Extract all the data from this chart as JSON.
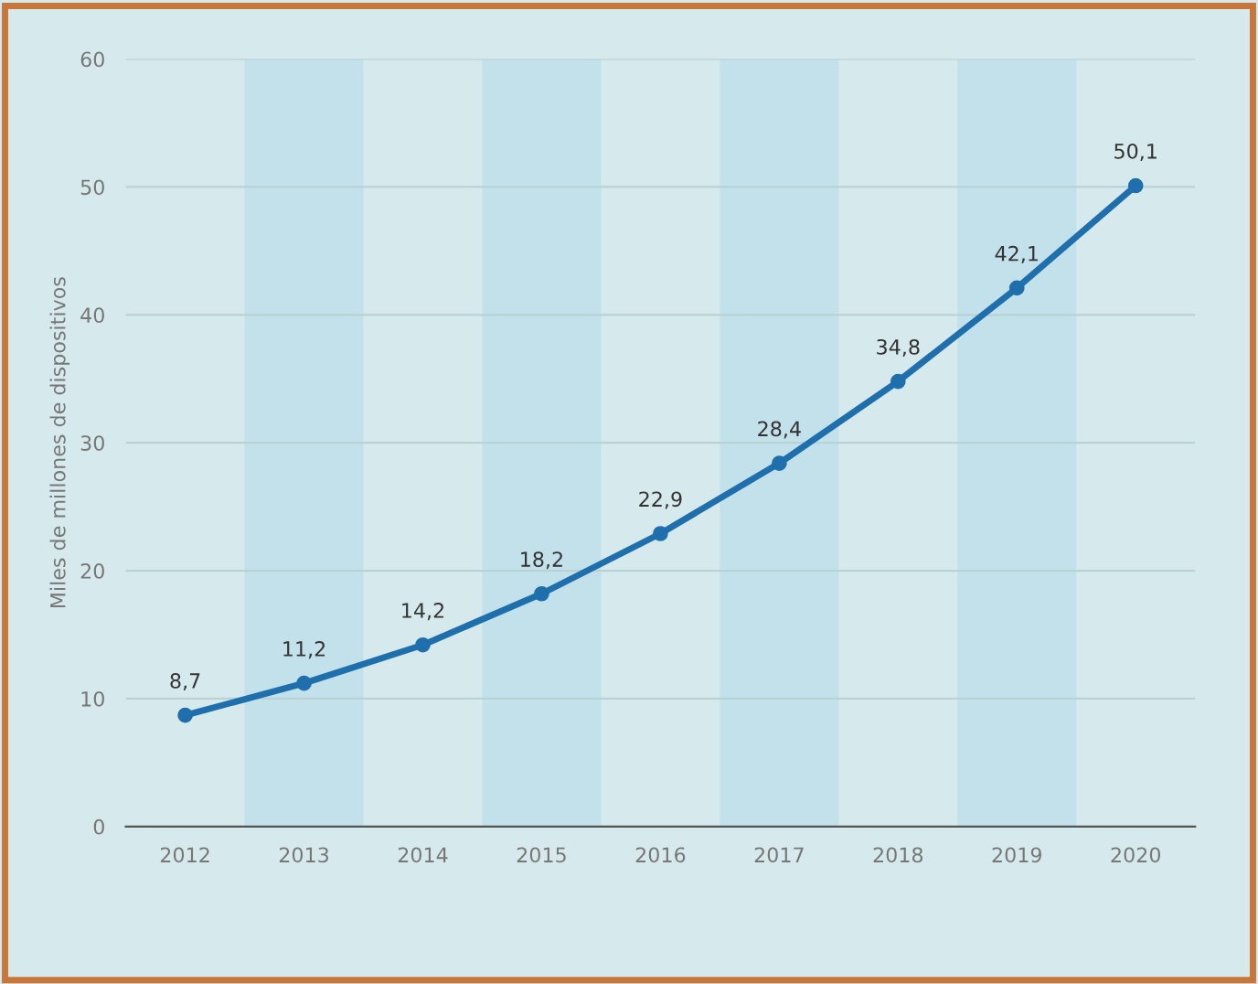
{
  "chart_data": {
    "type": "line",
    "ylabel": "Miles de millones de dispositivos",
    "categories": [
      "2012",
      "2013",
      "2014",
      "2015",
      "2016",
      "2017",
      "2018",
      "2019",
      "2020"
    ],
    "series": [
      {
        "color": "#1f6fad",
        "values": [
          8.7,
          11.2,
          14.2,
          18.2,
          22.9,
          28.4,
          34.8,
          42.1,
          50.1
        ]
      }
    ],
    "value_labels": [
      "8,7",
      "11,2",
      "14,2",
      "18,2",
      "22,9",
      "28,4",
      "34,8",
      "42,1",
      "50,1"
    ],
    "ylim": [
      0,
      60
    ],
    "yticks": [
      0,
      10,
      20,
      30,
      40,
      50,
      60
    ],
    "bands": [
      {
        "axis": "x",
        "from": "2013",
        "to": "2013",
        "color": "#c2e1ea"
      },
      {
        "axis": "x",
        "from": "2015",
        "to": "2015",
        "color": "#c2e1ea"
      },
      {
        "axis": "x",
        "from": "2017",
        "to": "2017",
        "color": "#c2e1ea"
      },
      {
        "axis": "x",
        "from": "2019",
        "to": "2019",
        "color": "#c2e1ea"
      }
    ],
    "grid": "y",
    "marker": "circle",
    "line_style": "solid",
    "legend": false
  }
}
